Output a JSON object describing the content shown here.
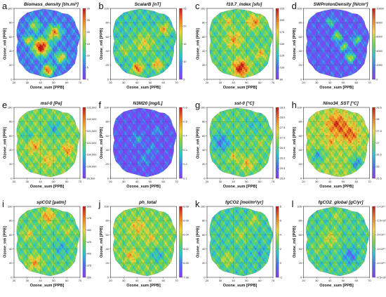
{
  "chart_data": [
    {
      "letter": "a",
      "title": "Biomass_density [t/n.mi²]",
      "type": "heatmap",
      "xlabel": "Ozone_sum [PPB]",
      "ylabel": "Ozone_m6 [PPB]",
      "xticks": [
        "20",
        "30",
        "40",
        "50",
        "60",
        "70"
      ],
      "yticks": [
        "0",
        "20",
        "40",
        "60",
        "80",
        "100"
      ],
      "xlim": [
        20,
        70
      ],
      "ylim": [
        0,
        100
      ],
      "colorbar": {
        "ticks": [
          "0",
          "5",
          "10",
          "15",
          "20",
          "25",
          "30"
        ],
        "range": [
          0,
          30
        ]
      },
      "colors": [
        "#8a3cf0",
        "#4f6cf5",
        "#27c6d2",
        "#6ed64a",
        "#f2d33a",
        "#f07f22",
        "#c2171b"
      ],
      "field": {
        "base": 0.18,
        "blobs": [
          [
            40,
            45,
            6,
            0.85
          ],
          [
            50,
            65,
            5,
            0.6
          ],
          [
            45,
            12,
            4,
            0.7
          ],
          [
            35,
            75,
            4,
            0.4
          ],
          [
            55,
            30,
            4,
            0.5
          ],
          [
            30,
            55,
            3,
            0.5
          ]
        ]
      }
    },
    {
      "letter": "b",
      "title": "ScalarB [nT]",
      "type": "heatmap",
      "xlabel": "Ozone_sum [PPB]",
      "ylabel": "Ozone_m6 [PPB]",
      "xticks": [
        "20",
        "30",
        "40",
        "50",
        "60",
        "70"
      ],
      "yticks": [
        "0",
        "20",
        "40",
        "60",
        "80",
        "100"
      ],
      "xlim": [
        20,
        70
      ],
      "ylim": [
        0,
        100
      ],
      "colorbar": {
        "ticks": [
          "5",
          "10",
          "15",
          "20",
          "25"
        ],
        "range": [
          5,
          25
        ]
      },
      "colors": [
        "#8a3cf0",
        "#4f6cf5",
        "#27c6d2",
        "#6ed64a",
        "#f2d33a",
        "#f07f22",
        "#c2171b"
      ],
      "field": {
        "base": 0.38,
        "blobs": [
          [
            45,
            50,
            8,
            0.25
          ],
          [
            40,
            15,
            4,
            0.5
          ],
          [
            60,
            70,
            4,
            0.35
          ],
          [
            55,
            20,
            4,
            0.4
          ],
          [
            30,
            40,
            4,
            0.2
          ]
        ]
      }
    },
    {
      "letter": "c",
      "title": "f10.7_index [sfu]",
      "type": "heatmap",
      "xlabel": "Ozone_sum [PPB]",
      "ylabel": "Ozone_m6 [PPB]",
      "xticks": [
        "20",
        "30",
        "40",
        "50",
        "60",
        "70"
      ],
      "yticks": [
        "0",
        "20",
        "40",
        "60",
        "80",
        "100"
      ],
      "xlim": [
        20,
        70
      ],
      "ylim": [
        0,
        100
      ],
      "colorbar": {
        "ticks": [
          "80",
          "100",
          "125",
          "150",
          "175",
          "200",
          "225"
        ],
        "range": [
          80,
          225
        ]
      },
      "colors": [
        "#8a3cf0",
        "#4f6cf5",
        "#27c6d2",
        "#6ed64a",
        "#f2d33a",
        "#f07f22",
        "#c2171b"
      ],
      "field": {
        "base": 0.45,
        "blobs": [
          [
            45,
            15,
            6,
            0.55
          ],
          [
            40,
            55,
            6,
            0.3
          ],
          [
            55,
            80,
            5,
            0.35
          ],
          [
            35,
            80,
            4,
            0.2
          ],
          [
            60,
            35,
            4,
            0.25
          ]
        ]
      }
    },
    {
      "letter": "d",
      "title": "SWProtonDensity [N/cm³]",
      "type": "heatmap",
      "xlabel": "Ozone_sum [PPB]",
      "ylabel": "Ozone_m6 [PPB]",
      "xticks": [
        "20",
        "30",
        "40",
        "50",
        "60",
        "70"
      ],
      "yticks": [
        "0",
        "20",
        "40",
        "60",
        "80",
        "100"
      ],
      "xlim": [
        20,
        70
      ],
      "ylim": [
        0,
        100
      ],
      "colorbar": {
        "ticks": [
          "0",
          "2000",
          "4000",
          "6000",
          "8000",
          "10000"
        ],
        "range": [
          0,
          10000
        ]
      },
      "colors": [
        "#8a3cf0",
        "#4f6cf5",
        "#27c6d2",
        "#6ed64a",
        "#f2d33a",
        "#f07f22",
        "#c2171b"
      ],
      "field": {
        "base": 0.12,
        "blobs": [
          [
            45,
            60,
            3,
            0.5
          ],
          [
            50,
            45,
            3,
            0.45
          ],
          [
            55,
            30,
            3,
            0.55
          ],
          [
            40,
            80,
            3,
            0.35
          ],
          [
            60,
            55,
            3,
            0.4
          ]
        ]
      }
    },
    {
      "letter": "e",
      "title": "msl-0 [Pa]",
      "type": "heatmap",
      "xlabel": "Ozone_sum [PPB]",
      "ylabel": "Ozone_m6 [PPB]",
      "xticks": [
        "20",
        "30",
        "40",
        "50",
        "60",
        "70"
      ],
      "yticks": [
        "0",
        "20",
        "40",
        "60",
        "80",
        "100"
      ],
      "xlim": [
        20,
        70
      ],
      "ylim": [
        0,
        100
      ],
      "colorbar": {
        "ticks": [
          "99,500",
          "100,000",
          "100,500",
          "101,000",
          "101,500",
          "102,000",
          "102,500"
        ],
        "range": [
          99500,
          102500
        ]
      },
      "colors": [
        "#8a3cf0",
        "#4f6cf5",
        "#27c6d2",
        "#6ed64a",
        "#f2d33a",
        "#f07f22",
        "#c2171b"
      ],
      "field": {
        "base": 0.5,
        "blobs": [
          [
            35,
            45,
            5,
            0.25
          ],
          [
            50,
            70,
            5,
            -0.2
          ],
          [
            45,
            25,
            5,
            0.2
          ],
          [
            60,
            40,
            4,
            0.3
          ],
          [
            30,
            60,
            4,
            -0.15
          ]
        ]
      }
    },
    {
      "letter": "f",
      "title": "N3M20 [mg/L]",
      "type": "heatmap",
      "xlabel": "Ozone_sum [PPB]",
      "ylabel": "Ozone_m6 [PPB]",
      "xticks": [
        "20",
        "30",
        "40",
        "50",
        "60",
        "70"
      ],
      "yticks": [
        "0",
        "20",
        "40",
        "60",
        "80",
        "100"
      ],
      "xlim": [
        20,
        70
      ],
      "ylim": [
        0,
        100
      ],
      "colorbar": {
        "ticks": [
          "0.1",
          "0.2",
          "0.3",
          "0.4",
          "0.5",
          "0.6"
        ],
        "range": [
          0.05,
          0.6
        ]
      },
      "colors": [
        "#8a3cf0",
        "#4f6cf5",
        "#27c6d2",
        "#6ed64a",
        "#f2d33a",
        "#f07f22",
        "#c2171b"
      ],
      "field": {
        "base": 0.1,
        "blobs": [
          [
            40,
            55,
            4,
            0.2
          ],
          [
            50,
            40,
            4,
            0.15
          ],
          [
            55,
            65,
            3,
            0.2
          ],
          [
            45,
            25,
            4,
            0.15
          ]
        ]
      }
    },
    {
      "letter": "g",
      "title": "sst-0 [°C]",
      "type": "heatmap",
      "xlabel": "Ozone_sum [PPB]",
      "ylabel": "Ozone_m6 [PPB]",
      "xticks": [
        "20",
        "30",
        "40",
        "50",
        "60",
        "70"
      ],
      "yticks": [
        "0",
        "20",
        "40",
        "60",
        "80",
        "100"
      ],
      "xlim": [
        20,
        70
      ],
      "ylim": [
        0,
        100
      ],
      "colorbar": {
        "ticks": [
          "25.0",
          "25.5",
          "26.0",
          "26.5",
          "27.0",
          "27.5",
          "28.0",
          "28.5"
        ],
        "range": [
          25,
          28.5
        ]
      },
      "colors": [
        "#8a3cf0",
        "#4f6cf5",
        "#27c6d2",
        "#6ed64a",
        "#f2d33a",
        "#f07f22",
        "#c2171b"
      ],
      "field": {
        "base": 0.45,
        "blobs": [
          [
            30,
            50,
            6,
            -0.25
          ],
          [
            50,
            20,
            5,
            0.25
          ],
          [
            55,
            75,
            5,
            -0.1
          ],
          [
            40,
            30,
            4,
            0.2
          ],
          [
            60,
            50,
            4,
            0.1
          ]
        ]
      }
    },
    {
      "letter": "h",
      "title": "Nino34_SST [°C]",
      "type": "heatmap",
      "xlabel": "Ozone_sum [PPB]",
      "ylabel": "Ozone_m6 [PPB]",
      "xticks": [
        "20",
        "30",
        "40",
        "50",
        "60",
        "70"
      ],
      "yticks": [
        "0",
        "20",
        "40",
        "60",
        "80",
        "100"
      ],
      "xlim": [
        20,
        70
      ],
      "ylim": [
        0,
        100
      ],
      "colorbar": {
        "ticks": [
          "25.5",
          "26",
          "26.5",
          "27",
          "27.5",
          "28",
          "28.5"
        ],
        "range": [
          25.5,
          28.5
        ]
      },
      "colors": [
        "#8a3cf0",
        "#4f6cf5",
        "#27c6d2",
        "#6ed64a",
        "#f2d33a",
        "#f07f22",
        "#c2171b"
      ],
      "field": {
        "base": 0.55,
        "blobs": [
          [
            45,
            75,
            8,
            0.35
          ],
          [
            55,
            60,
            6,
            0.3
          ],
          [
            30,
            30,
            5,
            -0.25
          ],
          [
            60,
            20,
            5,
            -0.3
          ],
          [
            40,
            50,
            4,
            0.15
          ]
        ]
      }
    },
    {
      "letter": "i",
      "title": "spCO2 [µatm]",
      "type": "heatmap",
      "xlabel": "Ozone_sum [PPB]",
      "ylabel": "Ozone_m6 [PPB]",
      "xticks": [
        "20",
        "30",
        "40",
        "50",
        "60",
        "70"
      ],
      "yticks": [
        "0",
        "20",
        "40",
        "60",
        "80",
        "100"
      ],
      "xlim": [
        20,
        70
      ],
      "ylim": [
        0,
        100
      ],
      "colorbar": {
        "ticks": [
          "350",
          "375",
          "400",
          "425",
          "450",
          "475",
          "500"
        ],
        "range": [
          350,
          500
        ]
      },
      "colors": [
        "#8a3cf0",
        "#4f6cf5",
        "#27c6d2",
        "#6ed64a",
        "#f2d33a",
        "#f07f22",
        "#c2171b"
      ],
      "field": {
        "base": 0.45,
        "blobs": [
          [
            45,
            85,
            5,
            0.35
          ],
          [
            35,
            20,
            5,
            0.3
          ],
          [
            55,
            40,
            5,
            -0.15
          ],
          [
            30,
            60,
            4,
            0.2
          ],
          [
            60,
            65,
            4,
            0.15
          ]
        ]
      }
    },
    {
      "letter": "j",
      "title": "ph_total",
      "type": "heatmap",
      "xlabel": "Ozone_sum [PPB]",
      "ylabel": "Ozone_m6 [PPB]",
      "xticks": [
        "20",
        "30",
        "40",
        "50",
        "60",
        "70"
      ],
      "yticks": [
        "0",
        "20",
        "40",
        "60",
        "80",
        "100"
      ],
      "xlim": [
        20,
        70
      ],
      "ylim": [
        0,
        100
      ],
      "colorbar": {
        "ticks": [
          "7.98",
          "8.00",
          "8.02",
          "8.04",
          "8.06",
          "8.08"
        ],
        "range": [
          7.97,
          8.08
        ]
      },
      "colors": [
        "#8a3cf0",
        "#4f6cf5",
        "#27c6d2",
        "#6ed64a",
        "#f2d33a",
        "#f07f22",
        "#c2171b"
      ],
      "field": {
        "base": 0.5,
        "blobs": [
          [
            40,
            70,
            6,
            0.2
          ],
          [
            55,
            30,
            5,
            -0.2
          ],
          [
            35,
            30,
            4,
            0.25
          ],
          [
            50,
            55,
            4,
            0.15
          ]
        ]
      }
    },
    {
      "letter": "k",
      "title": "fgCO2 [mol/m²/yr]",
      "type": "heatmap",
      "xlabel": "Ozone_sum [PPB]",
      "ylabel": "Ozone_m6 [PPB]",
      "xticks": [
        "20",
        "30",
        "40",
        "50",
        "60",
        "70"
      ],
      "yticks": [
        "0",
        "20",
        "40",
        "60",
        "80",
        "100"
      ],
      "xlim": [
        20,
        70
      ],
      "ylim": [
        0,
        100
      ],
      "colorbar": {
        "ticks": [
          "-2",
          "0",
          "2",
          "4",
          "6",
          "8"
        ],
        "range": [
          -2,
          8
        ]
      },
      "colors": [
        "#8a3cf0",
        "#4f6cf5",
        "#27c6d2",
        "#6ed64a",
        "#f2d33a",
        "#f07f22",
        "#c2171b"
      ],
      "field": {
        "base": 0.4,
        "blobs": [
          [
            45,
            60,
            6,
            0.15
          ],
          [
            35,
            25,
            5,
            0.2
          ],
          [
            55,
            80,
            4,
            0.2
          ],
          [
            60,
            35,
            4,
            -0.1
          ]
        ]
      }
    },
    {
      "letter": "l",
      "title": "fgCO2_global [gC/yr]",
      "type": "heatmap",
      "xlabel": "Ozone_sum [PPB]",
      "ylabel": "Ozone_m6 [PPB]",
      "xticks": [
        "20",
        "30",
        "40",
        "50",
        "60",
        "70"
      ],
      "yticks": [
        "0",
        "20",
        "40",
        "60",
        "80",
        "100"
      ],
      "xlim": [
        20,
        70
      ],
      "ylim": [
        0,
        100
      ],
      "colorbar": {
        "ticks": [
          "-4.5×10¹⁴",
          "-4×10¹⁴",
          "-3×10¹⁴",
          "-2×10¹⁴",
          "-1.5×10¹⁴",
          "-1×10¹⁴"
        ],
        "range": [
          -4.5,
          -1
        ]
      },
      "colors": [
        "#8a3cf0",
        "#4f6cf5",
        "#27c6d2",
        "#6ed64a",
        "#f2d33a",
        "#f07f22",
        "#c2171b"
      ],
      "field": {
        "base": 0.42,
        "blobs": [
          [
            40,
            55,
            6,
            0.2
          ],
          [
            55,
            30,
            5,
            -0.25
          ],
          [
            45,
            85,
            4,
            0.15
          ],
          [
            30,
            40,
            4,
            0.1
          ]
        ]
      }
    }
  ]
}
